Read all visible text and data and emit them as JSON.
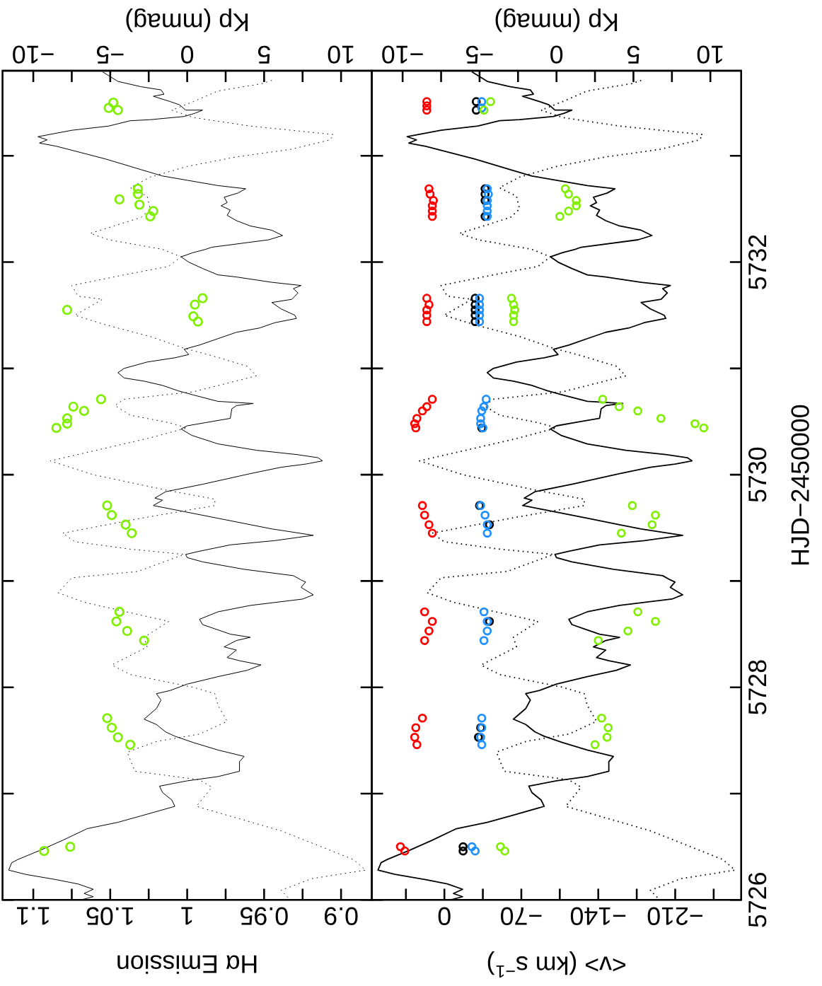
{
  "chart_data": [
    {
      "type": "scatter",
      "xlabel": "Hα Emission",
      "x2label": "Kp (mmag)",
      "ylim": [
        5726,
        5733.8
      ],
      "yticks": [
        5726,
        {
          "value": 5727,
          "label": null
        },
        5728,
        {
          "value": 5729,
          "label": null
        },
        5730,
        {
          "value": 5731,
          "label": null
        },
        5732,
        {
          "value": 5733,
          "label": null
        }
      ],
      "tick_labels": "x",
      "xlim": [
        1.12,
        0.88
      ],
      "xticks": [
        {
          "value": 0.9,
          "label": "0.9"
        },
        {
          "value": 0.925,
          "label": null
        },
        {
          "value": 0.95,
          "label": "0.95"
        },
        {
          "value": 0.975,
          "label": null
        },
        {
          "value": 1,
          "label": "1"
        },
        {
          "value": 1.025,
          "label": null
        },
        {
          "value": 1.05,
          "label": "1.05"
        },
        {
          "value": 1.075,
          "label": null
        },
        {
          "value": 1.1,
          "label": "1.1"
        }
      ],
      "x2lim": [
        -12,
        12
      ],
      "x2ticks": [
        {
          "value": -10,
          "label": "−10"
        },
        {
          "value": -7.5,
          "label": null
        },
        {
          "value": -5,
          "label": "−5"
        },
        {
          "value": -2.5,
          "label": null
        },
        {
          "value": 0,
          "label": "0"
        },
        {
          "value": 2.5,
          "label": null
        },
        {
          "value": 5,
          "label": "5"
        },
        {
          "value": 7.5,
          "label": null
        },
        {
          "value": 10,
          "label": "10"
        }
      ],
      "series": [
        {
          "type": "line",
          "axis": "x2",
          "line_style": "solid",
          "color": "#000000",
          "values": [
            5733.79,
            5733.7,
            5733.65,
            5733.62,
            5733.58,
            5733.56,
            5733.51,
            5733.48,
            5733.43,
            5733.43,
            5733.4,
            5733.37,
            5733.34,
            5733.33,
            5733.28,
            5733.24,
            5733.18,
            5733.15,
            5733.12,
            5733.09,
            5733.03,
            5732.97,
            5732.87,
            5732.81,
            5732.77,
            5732.72,
            5732.69,
            5732.65,
            5732.61,
            5732.56,
            5732.53,
            5732.49,
            5732.44,
            5732.39,
            5732.34,
            5732.3,
            5732.25,
            5732.21,
            5732.14,
            5732.12,
            5732.09,
            5732.05,
            5732.0,
            5731.94,
            5731.88,
            5731.86,
            5731.81,
            5731.78,
            5731.75,
            5731.71,
            5731.65,
            5731.62,
            5731.56,
            5731.5,
            5731.47,
            5731.43,
            5731.38,
            5731.34,
            5731.28,
            5731.22,
            5731.18,
            5731.13,
            5731.1,
            5731.06,
            5731.0,
            5730.96,
            5730.91,
            5730.88,
            5730.84,
            5730.79,
            5730.75,
            5730.69,
            5730.67,
            5730.65,
            5730.62,
            5730.53,
            5730.49,
            5730.46,
            5730.43,
            5730.37,
            5730.29,
            5730.23,
            5730.19,
            5730.16,
            5730.13,
            5730.1,
            5730.07,
            5730.01,
            5729.91,
            5729.84,
            5729.78,
            5729.76,
            5729.71,
            5729.67,
            5729.59,
            5729.53,
            5729.49,
            5729.43,
            5729.38,
            5729.34,
            5729.28,
            5729.25,
            5729.22,
            5729.18,
            5729.11,
            5729.05,
            5729.01,
            5728.99,
            5728.94,
            5728.87,
            5728.83,
            5728.77,
            5728.71,
            5728.64,
            5728.59,
            5728.55,
            5728.5,
            5728.47,
            5728.44,
            5728.38,
            5728.35,
            5728.28,
            5728.25,
            5728.21,
            5728.16,
            5728.1,
            5728.03,
            5727.97,
            5727.94,
            5727.88,
            5727.8,
            5727.7,
            5727.65,
            5727.58,
            5727.54,
            5727.48,
            5727.41,
            5727.35,
            5727.3,
            5727.21,
            5727.16,
            5727.12,
            5727.07,
            5727.01,
            5726.94,
            5726.88,
            5726.79,
            5726.73,
            5726.67,
            5726.56,
            5726.47,
            5726.38,
            5726.35,
            5726.28,
            5726.24,
            5726.19,
            5726.15,
            5726.1,
            5726.06,
            5726.03,
            5726.0
          ],
          "x": [
            -5.5,
            -4.5,
            -3.0,
            -1.7,
            -1.5,
            -2.2,
            -1.1,
            -0.5,
            -0.1,
            1.0,
            0.5,
            -0.2,
            -2.4,
            -3.7,
            -5.1,
            -7.5,
            -9.7,
            -9.1,
            -9.6,
            -8.5,
            -6.9,
            -5.3,
            -3.0,
            -1.6,
            0.0,
            2.0,
            3.8,
            3.3,
            2.4,
            2.6,
            2.2,
            2.8,
            2.6,
            3.2,
            4.1,
            5.5,
            6.2,
            5.3,
            1.6,
            1.2,
            0.4,
            -0.4,
            0.1,
            1.0,
            2.0,
            3.2,
            5.5,
            7.4,
            6.9,
            7.2,
            6.8,
            5.5,
            6.1,
            7.0,
            7.1,
            5.7,
            4.7,
            3.2,
            2.0,
            0.8,
            -0.2,
            0.1,
            -0.8,
            -2.6,
            -4.1,
            -4.5,
            -4.1,
            -2.8,
            -1.6,
            -0.6,
            0.4,
            2.0,
            4.3,
            3.2,
            2.9,
            2.8,
            1.2,
            0.0,
            -0.4,
            0.3,
            2.0,
            4.5,
            7.1,
            8.5,
            8.8,
            7.7,
            6.1,
            4.1,
            1.0,
            -1.4,
            -2.1,
            -1.6,
            -2.2,
            -0.8,
            2.0,
            4.1,
            5.5,
            8.2,
            5.7,
            2.8,
            0.8,
            -0.1,
            0.0,
            1.0,
            3.7,
            6.9,
            7.4,
            7.7,
            7.4,
            8.2,
            7.5,
            4.1,
            2.0,
            0.8,
            1.0,
            1.8,
            2.8,
            4.1,
            3.2,
            2.4,
            3.2,
            2.6,
            3.4,
            4.8,
            3.9,
            2.0,
            0.0,
            -1.1,
            -2.0,
            -1.7,
            -2.0,
            -2.8,
            -2.0,
            -1.4,
            -0.8,
            0.4,
            2.0,
            3.7,
            3.4,
            3.4,
            2.0,
            0.0,
            -1.8,
            -1.6,
            -1.0,
            -0.8,
            -3.0,
            -4.5,
            -6.5,
            -8.1,
            -9.5,
            -11.0,
            -11.4,
            -11.6,
            -10.5,
            -8.5,
            -7.1,
            -6.1,
            -6.7,
            -6.1,
            -6.9
          ]
        },
        {
          "type": "line",
          "axis": "x2",
          "line_style": "dotted",
          "color": "#000000",
          "values": [
            5733.71,
            5733.68,
            5733.61,
            5733.51,
            5733.43,
            5733.36,
            5733.28,
            5733.2,
            5733.15,
            5733.06,
            5732.99,
            5732.9,
            5732.8,
            5732.7,
            5732.62,
            5732.5,
            5732.42,
            5732.27,
            5732.21,
            5732.12,
            5732.05,
            5731.96,
            5731.88,
            5731.78,
            5731.68,
            5731.65,
            5731.5,
            5731.41,
            5731.3,
            5731.19,
            5731.12,
            5731.02,
            5730.93,
            5730.78,
            5730.71,
            5730.65,
            5730.56,
            5730.49,
            5730.44,
            5730.34,
            5730.13,
            5730.0,
            5729.85,
            5729.77,
            5729.71,
            5729.59,
            5729.45,
            5729.37,
            5729.3,
            5729.25,
            5729.09,
            5729.03,
            5728.89,
            5728.8,
            5728.62,
            5728.47,
            5728.38,
            5728.21,
            5728.12,
            5728.0,
            5727.94,
            5727.83,
            5727.68,
            5727.56,
            5727.49,
            5727.39,
            5727.21,
            5727.13,
            5727.06,
            5726.88,
            5726.65,
            5726.38,
            5726.28,
            5726.2,
            5726.09,
            5726.0
          ],
          "x": [
            5.5,
            4.9,
            2.0,
            0.4,
            -1.0,
            0.4,
            4.1,
            9.5,
            9.3,
            6.7,
            3.2,
            0.0,
            -2.4,
            -3.7,
            -2.6,
            -2.4,
            -3.0,
            -6.3,
            -5.1,
            -1.6,
            -0.4,
            -1.2,
            -4.1,
            -7.5,
            -7.1,
            -5.5,
            -7.3,
            -5.3,
            -2.4,
            -0.2,
            1.6,
            3.9,
            4.5,
            0.4,
            -4.1,
            -4.7,
            -3.7,
            -1.2,
            0.0,
            -2.6,
            -8.9,
            -6.1,
            -1.2,
            1.8,
            1.8,
            -3.0,
            -8.1,
            -7.3,
            -3.7,
            -0.2,
            -3.2,
            -7.5,
            -8.4,
            -6.7,
            -1.2,
            -2.8,
            -2.6,
            -4.9,
            -3.7,
            0.4,
            1.8,
            2.0,
            2.6,
            0.8,
            -2.0,
            -3.9,
            -3.4,
            0.8,
            1.6,
            0.6,
            6.1,
            10.8,
            11.6,
            8.1,
            6.1,
            6.7
          ]
        },
        {
          "marker": "circle",
          "color": "#80f000",
          "values": [
            5733.5,
            5733.45,
            5733.43,
            5732.69,
            5732.64,
            5732.59,
            5732.54,
            5732.48,
            5732.43,
            5731.66,
            5731.6,
            5731.55,
            5731.49,
            5731.44,
            5730.71,
            5730.64,
            5730.6,
            5730.53,
            5730.48,
            5730.44,
            5729.71,
            5729.62,
            5729.53,
            5729.45,
            5728.71,
            5728.62,
            5728.53,
            5728.44,
            5727.71,
            5727.62,
            5727.53,
            5727.46,
            5726.5,
            5726.46
          ],
          "x": [
            1.048,
            1.051,
            1.045,
            1.032,
            1.032,
            1.044,
            1.031,
            1.022,
            1.024,
            0.99,
            0.995,
            1.078,
            0.996,
            0.993,
            1.056,
            1.074,
            1.067,
            1.078,
            1.078,
            1.085,
            1.052,
            1.049,
            1.04,
            1.036,
            1.044,
            1.046,
            1.039,
            1.028,
            1.052,
            1.049,
            1.045,
            1.037,
            1.076,
            1.093
          ]
        }
      ]
    },
    {
      "type": "scatter",
      "ylabel": "HJD−2450000",
      "xlabel": "<v> (km s$^{−1}$)",
      "x2label": "Kp (mmag)",
      "ylim": [
        5726,
        5733.8
      ],
      "yticks": [
        {
          "value": 5726,
          "label": "5726"
        },
        {
          "value": 5727,
          "label": null
        },
        {
          "value": 5728,
          "label": "5728"
        },
        {
          "value": 5729,
          "label": null
        },
        {
          "value": 5730,
          "label": "5730"
        },
        {
          "value": 5731,
          "label": null
        },
        {
          "value": 5732,
          "label": "5732"
        },
        {
          "value": 5733,
          "label": null
        }
      ],
      "xlim": [
        66,
        -270
      ],
      "xticks": [
        {
          "value": -245,
          "label": null
        },
        {
          "value": -210,
          "label": "−210"
        },
        {
          "value": -175,
          "label": null
        },
        {
          "value": -140,
          "label": "−140"
        },
        {
          "value": -105,
          "label": null
        },
        {
          "value": -70,
          "label": "−70"
        },
        {
          "value": -35,
          "label": null
        },
        {
          "value": 0,
          "label": "0"
        },
        {
          "value": 35,
          "label": null
        }
      ],
      "x2lim": [
        -12,
        12
      ],
      "x2ticks": [
        {
          "value": -10,
          "label": "−10"
        },
        {
          "value": -7.5,
          "label": null
        },
        {
          "value": -5,
          "label": "−5"
        },
        {
          "value": -2.5,
          "label": null
        },
        {
          "value": 0,
          "label": "0"
        },
        {
          "value": 2.5,
          "label": null
        },
        {
          "value": 5,
          "label": "5"
        },
        {
          "value": 7.5,
          "label": null
        },
        {
          "value": 10,
          "label": "10"
        }
      ],
      "series": [
        {
          "type": "line",
          "axis": "x2",
          "line_style": "solid",
          "color": "#000000",
          "values": [
            5733.79,
            5733.7,
            5733.65,
            5733.62,
            5733.58,
            5733.56,
            5733.51,
            5733.48,
            5733.43,
            5733.43,
            5733.4,
            5733.37,
            5733.34,
            5733.33,
            5733.28,
            5733.24,
            5733.18,
            5733.15,
            5733.12,
            5733.09,
            5733.03,
            5732.97,
            5732.87,
            5732.81,
            5732.77,
            5732.72,
            5732.69,
            5732.65,
            5732.61,
            5732.56,
            5732.53,
            5732.49,
            5732.44,
            5732.39,
            5732.34,
            5732.3,
            5732.25,
            5732.21,
            5732.14,
            5732.12,
            5732.09,
            5732.05,
            5732.0,
            5731.94,
            5731.88,
            5731.86,
            5731.81,
            5731.78,
            5731.75,
            5731.71,
            5731.65,
            5731.62,
            5731.56,
            5731.5,
            5731.47,
            5731.43,
            5731.38,
            5731.34,
            5731.28,
            5731.22,
            5731.18,
            5731.13,
            5731.1,
            5731.06,
            5731.0,
            5730.96,
            5730.91,
            5730.88,
            5730.84,
            5730.79,
            5730.75,
            5730.69,
            5730.67,
            5730.65,
            5730.62,
            5730.53,
            5730.49,
            5730.46,
            5730.43,
            5730.37,
            5730.29,
            5730.23,
            5730.19,
            5730.16,
            5730.13,
            5730.1,
            5730.07,
            5730.01,
            5729.91,
            5729.84,
            5729.78,
            5729.76,
            5729.71,
            5729.67,
            5729.59,
            5729.53,
            5729.49,
            5729.43,
            5729.38,
            5729.34,
            5729.28,
            5729.25,
            5729.22,
            5729.18,
            5729.11,
            5729.05,
            5729.01,
            5728.99,
            5728.94,
            5728.87,
            5728.83,
            5728.77,
            5728.71,
            5728.64,
            5728.59,
            5728.55,
            5728.5,
            5728.47,
            5728.44,
            5728.38,
            5728.35,
            5728.28,
            5728.25,
            5728.21,
            5728.16,
            5728.1,
            5728.03,
            5727.97,
            5727.94,
            5727.88,
            5727.8,
            5727.7,
            5727.65,
            5727.58,
            5727.54,
            5727.48,
            5727.41,
            5727.35,
            5727.3,
            5727.21,
            5727.16,
            5727.12,
            5727.07,
            5727.01,
            5726.94,
            5726.88,
            5726.79,
            5726.73,
            5726.67,
            5726.56,
            5726.47,
            5726.38,
            5726.35,
            5726.28,
            5726.24,
            5726.19,
            5726.15,
            5726.1,
            5726.06,
            5726.03,
            5726.0
          ],
          "x": [
            -5.5,
            -4.5,
            -3.0,
            -1.7,
            -1.5,
            -2.2,
            -1.1,
            -0.5,
            -0.1,
            1.0,
            0.5,
            -0.2,
            -2.4,
            -3.7,
            -5.1,
            -7.5,
            -9.7,
            -9.1,
            -9.6,
            -8.5,
            -6.9,
            -5.3,
            -3.0,
            -1.6,
            0.0,
            2.0,
            3.8,
            3.3,
            2.4,
            2.6,
            2.2,
            2.8,
            2.6,
            3.2,
            4.1,
            5.5,
            6.2,
            5.3,
            1.6,
            1.2,
            0.4,
            -0.4,
            0.1,
            1.0,
            2.0,
            3.2,
            5.5,
            7.4,
            6.9,
            7.2,
            6.8,
            5.5,
            6.1,
            7.0,
            7.1,
            5.7,
            4.7,
            3.2,
            2.0,
            0.8,
            -0.2,
            0.1,
            -0.8,
            -2.6,
            -4.1,
            -4.5,
            -4.1,
            -2.8,
            -1.6,
            -0.6,
            0.4,
            2.0,
            4.3,
            3.2,
            2.9,
            2.8,
            1.2,
            0.0,
            -0.4,
            0.3,
            2.0,
            4.5,
            7.1,
            8.5,
            8.8,
            7.7,
            6.1,
            4.1,
            1.0,
            -1.4,
            -2.1,
            -1.6,
            -2.2,
            -0.8,
            2.0,
            4.1,
            5.5,
            8.2,
            5.7,
            2.8,
            0.8,
            -0.1,
            0.0,
            1.0,
            3.7,
            6.9,
            7.4,
            7.7,
            7.4,
            8.2,
            7.5,
            4.1,
            2.0,
            0.8,
            1.0,
            1.8,
            2.8,
            4.1,
            3.2,
            2.4,
            3.2,
            2.6,
            3.4,
            4.8,
            3.9,
            2.0,
            0.0,
            -1.1,
            -2.0,
            -1.7,
            -2.0,
            -2.8,
            -2.0,
            -1.4,
            -0.8,
            0.4,
            2.0,
            3.7,
            3.4,
            3.4,
            2.0,
            0.0,
            -1.8,
            -1.6,
            -1.0,
            -0.8,
            -3.0,
            -4.5,
            -6.5,
            -8.1,
            -9.5,
            -11.0,
            -11.4,
            -11.6,
            -10.5,
            -8.5,
            -7.1,
            -6.1,
            -6.7,
            -6.1,
            -6.9
          ]
        },
        {
          "type": "line",
          "axis": "x2",
          "line_style": "dotted",
          "color": "#000000",
          "values": [
            5733.71,
            5733.68,
            5733.61,
            5733.51,
            5733.43,
            5733.36,
            5733.28,
            5733.2,
            5733.15,
            5733.06,
            5732.99,
            5732.9,
            5732.8,
            5732.7,
            5732.62,
            5732.5,
            5732.42,
            5732.27,
            5732.21,
            5732.12,
            5732.05,
            5731.96,
            5731.88,
            5731.78,
            5731.68,
            5731.65,
            5731.5,
            5731.41,
            5731.3,
            5731.19,
            5731.12,
            5731.02,
            5730.93,
            5730.78,
            5730.71,
            5730.65,
            5730.56,
            5730.49,
            5730.44,
            5730.34,
            5730.13,
            5730.0,
            5729.85,
            5729.77,
            5729.71,
            5729.59,
            5729.45,
            5729.37,
            5729.3,
            5729.25,
            5729.09,
            5729.03,
            5728.89,
            5728.8,
            5728.62,
            5728.47,
            5728.38,
            5728.21,
            5728.12,
            5728.0,
            5727.94,
            5727.83,
            5727.68,
            5727.56,
            5727.49,
            5727.39,
            5727.21,
            5727.13,
            5727.06,
            5726.88,
            5726.65,
            5726.38,
            5726.28,
            5726.2,
            5726.09,
            5726.0
          ],
          "x": [
            5.5,
            4.9,
            2.0,
            0.4,
            -1.0,
            0.4,
            4.1,
            9.5,
            9.3,
            6.7,
            3.2,
            0.0,
            -2.4,
            -3.7,
            -2.6,
            -2.4,
            -3.0,
            -6.3,
            -5.1,
            -1.6,
            -0.4,
            -1.2,
            -4.1,
            -7.5,
            -7.1,
            -5.5,
            -7.3,
            -5.3,
            -2.4,
            -0.2,
            1.6,
            3.9,
            4.5,
            0.4,
            -4.1,
            -4.7,
            -3.7,
            -1.2,
            0.0,
            -2.6,
            -8.9,
            -6.1,
            -1.2,
            1.8,
            1.8,
            -3.0,
            -8.1,
            -7.3,
            -3.7,
            -0.2,
            -3.2,
            -7.5,
            -8.4,
            -6.7,
            -1.2,
            -2.8,
            -2.6,
            -4.9,
            -3.7,
            0.4,
            1.8,
            2.0,
            2.6,
            0.8,
            -2.0,
            -3.9,
            -3.4,
            0.8,
            1.6,
            0.6,
            6.1,
            10.8,
            11.6,
            8.1,
            6.1,
            6.7
          ]
        },
        {
          "marker": "circle",
          "color": "#ff0000",
          "values": [
            5733.51,
            5733.47,
            5733.43,
            5732.69,
            5732.64,
            5732.58,
            5732.53,
            5732.48,
            5732.43,
            5731.66,
            5731.6,
            5731.55,
            5731.5,
            5731.44,
            5730.71,
            5730.64,
            5730.6,
            5730.53,
            5730.48,
            5730.44,
            5729.71,
            5729.62,
            5729.53,
            5729.45,
            5728.71,
            5728.62,
            5728.53,
            5728.44,
            5727.71,
            5727.62,
            5727.53,
            5727.46,
            5726.5,
            5726.46
          ],
          "x": [
            16,
            16,
            16,
            14,
            13,
            10,
            11,
            11,
            11,
            16,
            14,
            16,
            16,
            16,
            11,
            16,
            20,
            25,
            27,
            26,
            20,
            18,
            14,
            11,
            18,
            11,
            14,
            18,
            20,
            26,
            27,
            25,
            40,
            36
          ]
        },
        {
          "marker": "circle",
          "color": "#000000",
          "values": [
            5733.51,
            5733.43,
            5732.69,
            5732.64,
            5732.58,
            5732.43,
            5731.66,
            5731.6,
            5731.55,
            5731.5,
            5731.44,
            5730.44,
            5729.71,
            5729.53,
            5728.62,
            5727.62,
            5727.53,
            5726.5,
            5726.46
          ],
          "x": [
            -29,
            -29,
            -37,
            -37,
            -37,
            -37,
            -28,
            -28,
            -28,
            -28,
            -28,
            -34,
            -32,
            -41,
            -41,
            -33,
            -31,
            -17,
            -17
          ]
        },
        {
          "marker": "circle",
          "color": "#1e90ff",
          "values": [
            5733.51,
            5733.45,
            5732.69,
            5732.64,
            5732.58,
            5732.53,
            5732.48,
            5732.43,
            5731.66,
            5731.6,
            5731.55,
            5731.5,
            5731.44,
            5730.71,
            5730.64,
            5730.6,
            5730.53,
            5730.48,
            5730.44,
            5729.71,
            5729.62,
            5729.53,
            5729.45,
            5728.71,
            5728.62,
            5728.53,
            5728.44,
            5727.71,
            5727.62,
            5727.53,
            5727.46,
            5726.5,
            5726.46
          ],
          "x": [
            -34,
            -34,
            -39,
            -40,
            -39,
            -39,
            -39,
            -39,
            -32,
            -32,
            -32,
            -32,
            -32,
            -38,
            -36,
            -34,
            -33,
            -33,
            -35,
            -33,
            -37,
            -39,
            -39,
            -36,
            -39,
            -39,
            -36,
            -34,
            -34,
            -33,
            -34,
            -25,
            -28
          ]
        },
        {
          "marker": "circle",
          "color": "#80f000",
          "values": [
            5733.51,
            5733.43,
            5732.69,
            5732.64,
            5732.58,
            5732.53,
            5732.48,
            5732.43,
            5731.66,
            5731.6,
            5731.55,
            5731.5,
            5731.44,
            5730.71,
            5730.64,
            5730.6,
            5730.53,
            5730.48,
            5730.44,
            5729.71,
            5729.62,
            5729.53,
            5729.45,
            5728.71,
            5728.62,
            5728.53,
            5728.44,
            5727.71,
            5727.62,
            5727.53,
            5727.46,
            5726.5,
            5726.46
          ],
          "x": [
            -42,
            -36,
            -110,
            -113,
            -120,
            -120,
            -113,
            -105,
            -61,
            -63,
            -64,
            -63,
            -63,
            -144,
            -159,
            -176,
            -197,
            -228,
            -236,
            -171,
            -192,
            -189,
            -161,
            -176,
            -192,
            -167,
            -140,
            -143,
            -149,
            -148,
            -137,
            -51,
            -55
          ]
        }
      ]
    }
  ]
}
